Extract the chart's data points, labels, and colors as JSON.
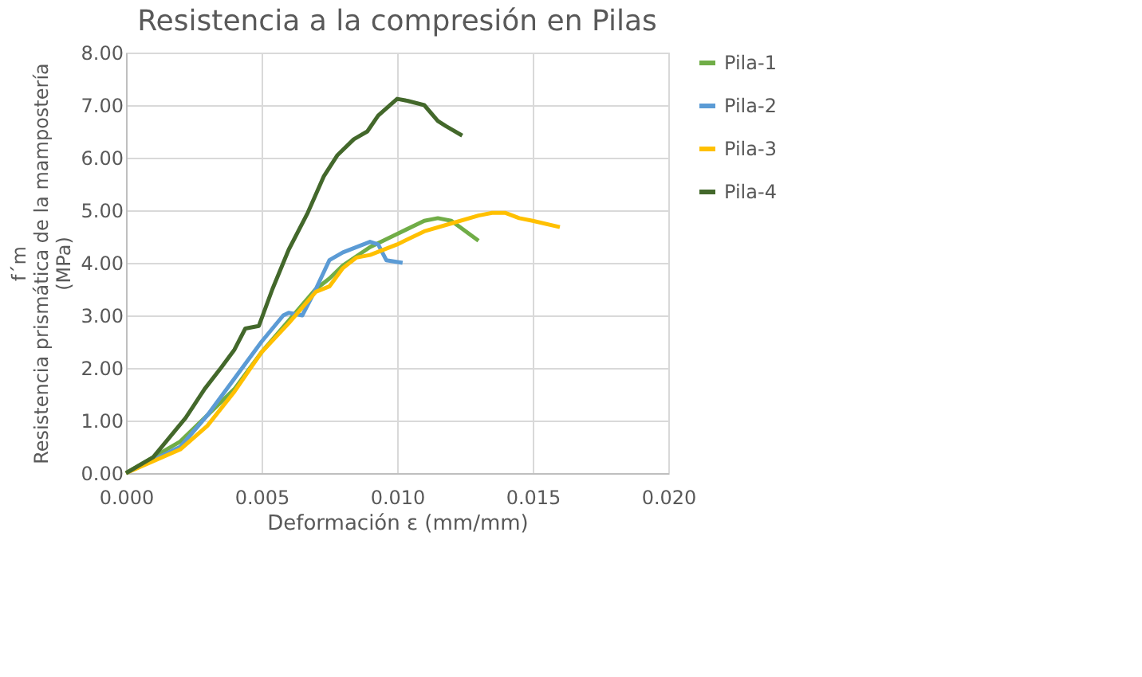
{
  "chart_data": {
    "type": "line",
    "title": "Resistencia a la compresión en Pilas",
    "xlabel": "Deformación ε (mm/mm)",
    "ylabel": [
      "f´m",
      "Resistencia prismática de la mampostería",
      "(MPa)"
    ],
    "xlim": [
      0,
      0.02
    ],
    "ylim": [
      0,
      8
    ],
    "xticks": [
      {
        "value": 0,
        "label": "0.000"
      },
      {
        "value": 0.005,
        "label": "0.005"
      },
      {
        "value": 0.01,
        "label": "0.010"
      },
      {
        "value": 0.015,
        "label": "0.015"
      },
      {
        "value": 0.02,
        "label": "0.020"
      }
    ],
    "yticks": [
      {
        "value": 0,
        "label": "0.00"
      },
      {
        "value": 1,
        "label": "1.00"
      },
      {
        "value": 2,
        "label": "2.00"
      },
      {
        "value": 3,
        "label": "3.00"
      },
      {
        "value": 4,
        "label": "4.00"
      },
      {
        "value": 5,
        "label": "5.00"
      },
      {
        "value": 6,
        "label": "6.00"
      },
      {
        "value": 7,
        "label": "7.00"
      },
      {
        "value": 8,
        "label": "8.00"
      }
    ],
    "grid": true,
    "legend": "right",
    "marker": "none",
    "line_style": "solid",
    "series": [
      {
        "name": "Pila-1",
        "color": "#70ad47",
        "x": [
          0,
          0.002,
          0.003,
          0.004,
          0.005,
          0.006,
          0.007,
          0.0075,
          0.008,
          0.009,
          0.01,
          0.011,
          0.0115,
          0.012,
          0.013
        ],
        "values": [
          0,
          0.6,
          1.1,
          1.6,
          2.3,
          2.9,
          3.5,
          3.7,
          3.95,
          4.3,
          4.55,
          4.8,
          4.85,
          4.8,
          4.42
        ]
      },
      {
        "name": "Pila-2",
        "color": "#5b9bd5",
        "x": [
          0,
          0.002,
          0.003,
          0.004,
          0.005,
          0.0058,
          0.006,
          0.0065,
          0.007,
          0.0075,
          0.008,
          0.009,
          0.0093,
          0.0096,
          0.0102
        ],
        "values": [
          0,
          0.5,
          1.1,
          1.8,
          2.5,
          3.0,
          3.05,
          3.0,
          3.5,
          4.05,
          4.2,
          4.4,
          4.35,
          4.05,
          4.0
        ]
      },
      {
        "name": "Pila-3",
        "color": "#ffc000",
        "x": [
          0,
          0.002,
          0.003,
          0.004,
          0.005,
          0.006,
          0.007,
          0.0075,
          0.008,
          0.0085,
          0.009,
          0.01,
          0.011,
          0.012,
          0.013,
          0.0135,
          0.014,
          0.0145,
          0.015,
          0.016
        ],
        "values": [
          0,
          0.45,
          0.9,
          1.55,
          2.3,
          2.85,
          3.45,
          3.55,
          3.9,
          4.1,
          4.15,
          4.35,
          4.6,
          4.75,
          4.9,
          4.95,
          4.95,
          4.85,
          4.8,
          4.68
        ]
      },
      {
        "name": "Pila-4",
        "color": "#43682b",
        "x": [
          0,
          0.001,
          0.0018,
          0.0022,
          0.0029,
          0.0035,
          0.004,
          0.0044,
          0.0049,
          0.0054,
          0.006,
          0.0067,
          0.0073,
          0.0078,
          0.0084,
          0.0089,
          0.0093,
          0.01,
          0.0104,
          0.011,
          0.0115,
          0.0118,
          0.0124
        ],
        "values": [
          0,
          0.3,
          0.8,
          1.05,
          1.6,
          2.0,
          2.35,
          2.75,
          2.8,
          3.5,
          4.25,
          4.95,
          5.65,
          6.05,
          6.35,
          6.5,
          6.8,
          7.12,
          7.08,
          7.0,
          6.7,
          6.6,
          6.42
        ]
      }
    ]
  }
}
